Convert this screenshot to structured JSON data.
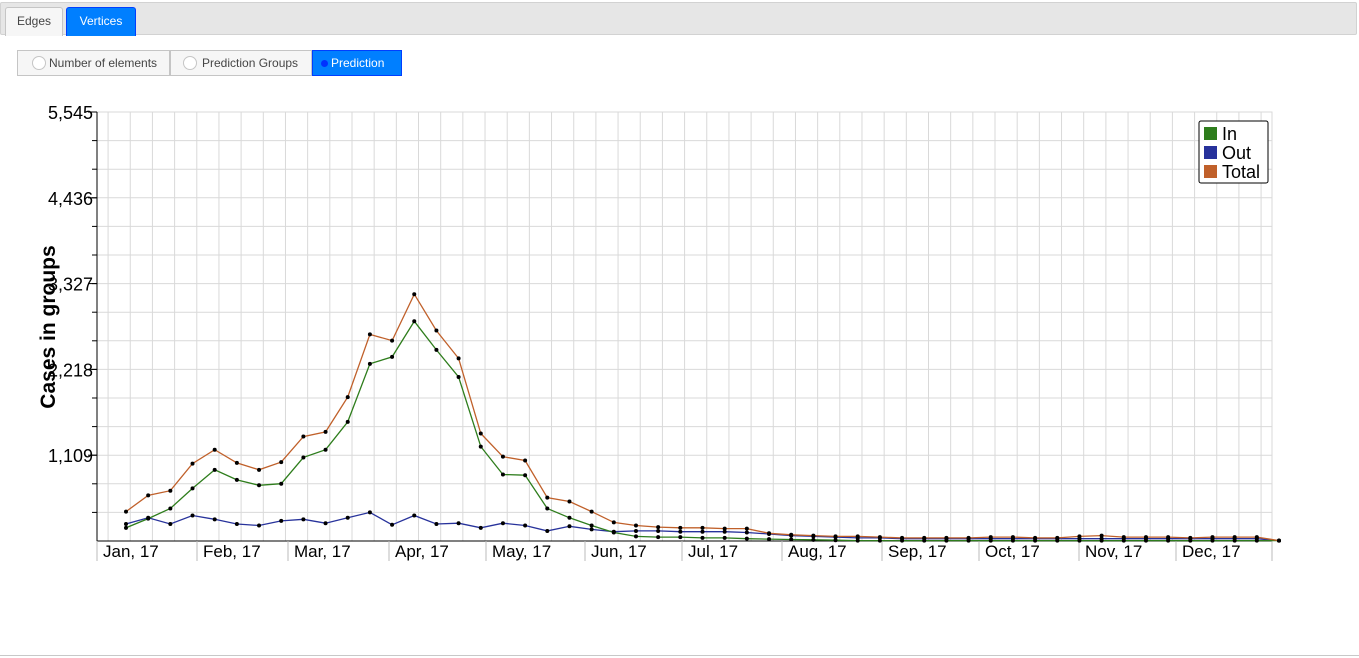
{
  "tabs": [
    {
      "label": "Edges",
      "active": false
    },
    {
      "label": "Vertices",
      "active": true
    }
  ],
  "view_options": [
    {
      "label": "Number of elements",
      "selected": false
    },
    {
      "label": "Prediction Groups",
      "selected": false
    },
    {
      "label": "Prediction",
      "selected": true
    }
  ],
  "colors": {
    "accent": "#007fff",
    "in": "#2e7d1c",
    "out": "#27329b",
    "total": "#c0602a",
    "grid": "#d9d9d9"
  },
  "chart_data": {
    "type": "line",
    "ylabel": "Cases in groups",
    "xlabel": "",
    "ylim": [
      0,
      5545
    ],
    "y_ticks": [
      1109,
      2218,
      3327,
      4436,
      5545
    ],
    "y_tick_labels": [
      "1,109",
      "2,218",
      "3,327",
      "4,436",
      "5,545"
    ],
    "x_tick_labels": [
      "Jan, 17",
      "Feb, 17",
      "Mar, 17",
      "Apr, 17",
      "May, 17",
      "Jun, 17",
      "Jul, 17",
      "Aug, 17",
      "Sep, 17",
      "Oct, 17",
      "Nov, 17",
      "Dec, 17"
    ],
    "grid": true,
    "legend": "top-right",
    "points_per_series": 53,
    "series": [
      {
        "name": "In",
        "color": "#2e7d1c",
        "values": [
          170,
          290,
          420,
          680,
          920,
          790,
          720,
          740,
          1080,
          1180,
          1540,
          2290,
          2380,
          2840,
          2470,
          2120,
          1220,
          860,
          850,
          420,
          300,
          200,
          110,
          60,
          50,
          50,
          40,
          40,
          30,
          25,
          20,
          15,
          10,
          5,
          5,
          5,
          5,
          5,
          5,
          5,
          5,
          5,
          5,
          5,
          5,
          5,
          5,
          5,
          5,
          5,
          5,
          5,
          5
        ]
      },
      {
        "name": "Out",
        "color": "#27329b",
        "values": [
          220,
          300,
          220,
          330,
          280,
          220,
          200,
          260,
          280,
          230,
          300,
          370,
          210,
          330,
          220,
          230,
          170,
          230,
          200,
          130,
          190,
          150,
          120,
          130,
          130,
          120,
          120,
          120,
          110,
          90,
          70,
          60,
          50,
          40,
          40,
          30,
          30,
          30,
          30,
          30,
          30,
          30,
          30,
          30,
          30,
          30,
          30,
          30,
          30,
          30,
          30,
          30,
          5
        ]
      },
      {
        "name": "Total",
        "color": "#c0602a",
        "values": [
          380,
          590,
          650,
          1000,
          1180,
          1010,
          920,
          1020,
          1350,
          1410,
          1860,
          2670,
          2590,
          3190,
          2720,
          2360,
          1390,
          1090,
          1040,
          560,
          510,
          380,
          240,
          200,
          180,
          170,
          170,
          160,
          160,
          100,
          80,
          70,
          60,
          60,
          50,
          40,
          40,
          40,
          40,
          50,
          50,
          40,
          40,
          60,
          70,
          50,
          50,
          50,
          40,
          50,
          50,
          50,
          5
        ]
      }
    ]
  }
}
